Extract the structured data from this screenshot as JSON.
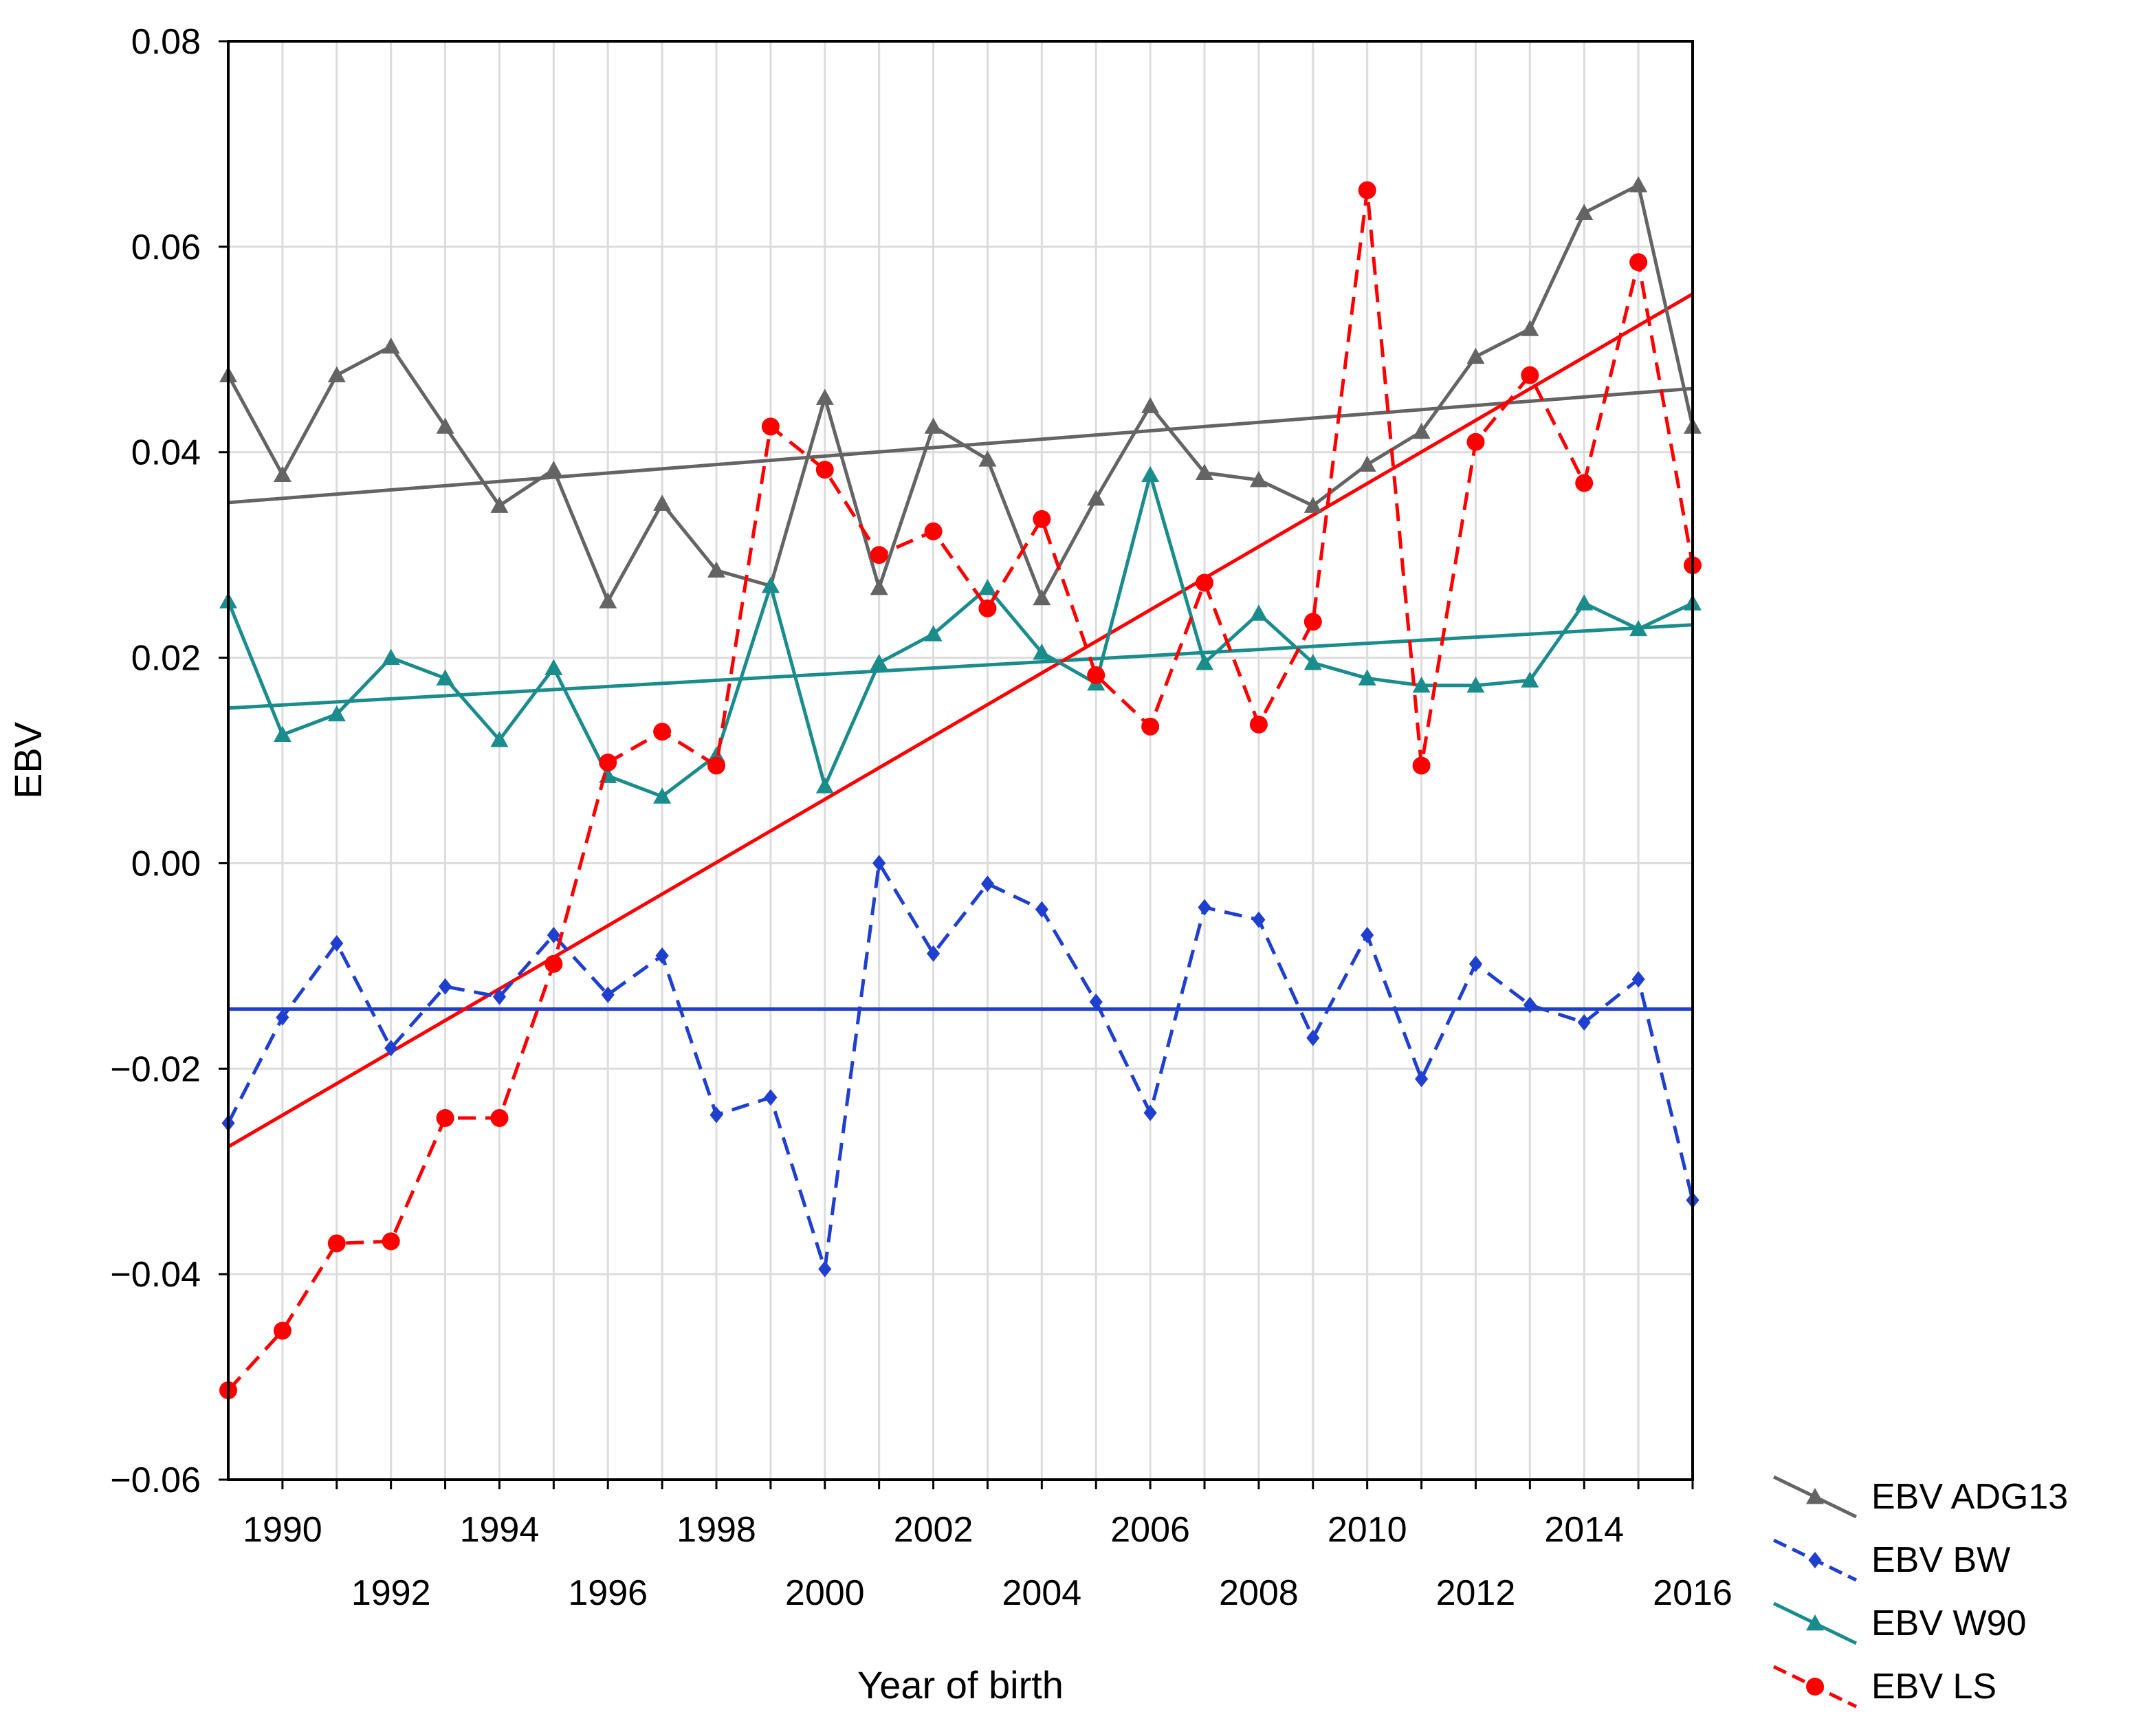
{
  "chart_data": {
    "type": "line",
    "title": "",
    "xlabel": "Year of birth",
    "ylabel": "EBV",
    "xlim": [
      1989,
      2016
    ],
    "ylim": [
      -0.06,
      0.08
    ],
    "grid": true,
    "legend_position": "bottom-right, outside plot",
    "x_ticks_upper": [
      "1990",
      "1994",
      "1998",
      "2002",
      "2006",
      "2010",
      "2014"
    ],
    "x_ticks_lower": [
      "1992",
      "1996",
      "2000",
      "2004",
      "2008",
      "2012",
      "2016"
    ],
    "y_ticks": [
      "0.08",
      "0.06",
      "0.04",
      "0.02",
      "0.00",
      "−0.02",
      "−0.04",
      "−0.06"
    ],
    "x": [
      1989,
      1990,
      1991,
      1992,
      1993,
      1994,
      1995,
      1996,
      1997,
      1998,
      1999,
      2000,
      2001,
      2002,
      2003,
      2004,
      2005,
      2006,
      2007,
      2008,
      2009,
      2010,
      2011,
      2012,
      2013,
      2014,
      2015,
      2016
    ],
    "series": [
      {
        "name": "EBV ADG13",
        "color": "#646464",
        "marker": "triangle",
        "dash": "solid",
        "values": [
          0.0475,
          0.0378,
          0.0475,
          0.0503,
          0.0425,
          0.0348,
          0.0383,
          0.0255,
          0.035,
          0.0285,
          0.027,
          0.0453,
          0.0268,
          0.0425,
          0.0393,
          0.0258,
          0.0355,
          0.0445,
          0.038,
          0.0373,
          0.0348,
          0.0388,
          0.042,
          0.0493,
          0.052,
          0.0633,
          0.066,
          0.0425
        ],
        "trend": [
          0.0351,
          0.0462
        ]
      },
      {
        "name": "EBV BW",
        "color": "#1f3fcf",
        "marker": "diamond",
        "dash": "dashed",
        "values": [
          -0.0253,
          -0.015,
          -0.0078,
          -0.018,
          -0.012,
          -0.013,
          -0.007,
          -0.0128,
          -0.009,
          -0.0245,
          -0.0228,
          -0.0395,
          0.0,
          -0.0088,
          -0.002,
          -0.0045,
          -0.0135,
          -0.0243,
          -0.0043,
          -0.0055,
          -0.017,
          -0.007,
          -0.021,
          -0.0098,
          -0.0138,
          -0.0155,
          -0.0113,
          -0.0328
        ],
        "trend": [
          -0.0142,
          -0.0142
        ]
      },
      {
        "name": "EBV W90",
        "color": "#1a8c8c",
        "marker": "triangle",
        "dash": "solid",
        "values": [
          0.0255,
          0.0125,
          0.0145,
          0.02,
          0.018,
          0.012,
          0.019,
          0.0085,
          0.0065,
          0.0105,
          0.027,
          0.0075,
          0.0195,
          0.0223,
          0.0268,
          0.0205,
          0.0175,
          0.0378,
          0.0195,
          0.0243,
          0.0195,
          0.018,
          0.0173,
          0.0173,
          0.0178,
          0.0253,
          0.0228,
          0.0253
        ],
        "trend": [
          0.0151,
          0.0232
        ]
      },
      {
        "name": "EBV LS",
        "color": "#ff0000",
        "marker": "circle",
        "dash": "dashed",
        "values": [
          -0.0513,
          -0.0455,
          -0.037,
          -0.0368,
          -0.0248,
          -0.0248,
          -0.0098,
          0.0098,
          0.0128,
          0.0095,
          0.0425,
          0.0383,
          0.03,
          0.0323,
          0.0248,
          0.0335,
          0.0183,
          0.0133,
          0.0273,
          0.0135,
          0.0235,
          0.0655,
          0.0095,
          0.041,
          0.0475,
          0.037,
          0.0585,
          0.029
        ],
        "trend": [
          -0.0276,
          0.0554
        ]
      }
    ]
  }
}
